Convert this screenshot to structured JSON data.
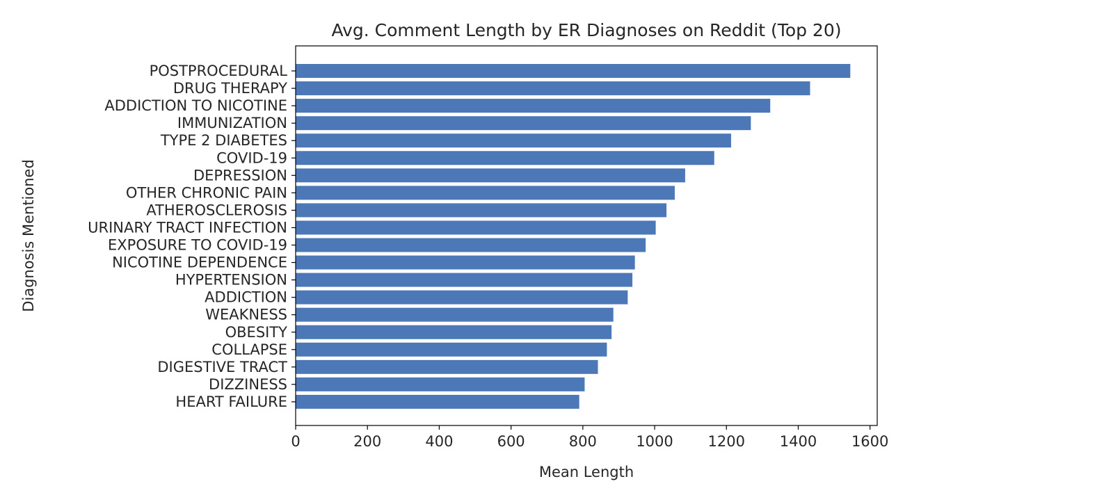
{
  "chart_data": {
    "type": "bar",
    "orientation": "horizontal",
    "title": "Avg. Comment Length by ER Diagnoses on Reddit (Top 20)",
    "xlabel": "Mean Length",
    "ylabel": "Diagnosis Mentioned",
    "xlim": [
      0,
      1620
    ],
    "xticks": [
      0,
      200,
      400,
      600,
      800,
      1000,
      1200,
      1400,
      1600
    ],
    "bar_color": "#4c78b8",
    "grid": false,
    "categories": [
      "POSTPROCEDURAL",
      "DRUG THERAPY",
      "ADDICTION TO NICOTINE",
      "IMMUNIZATION",
      "TYPE 2 DIABETES",
      "COVID-19",
      "DEPRESSION",
      "OTHER CHRONIC PAIN",
      "ATHEROSCLEROSIS",
      "URINARY TRACT INFECTION",
      "EXPOSURE TO COVID-19",
      "NICOTINE DEPENDENCE",
      "HYPERTENSION",
      "ADDICTION",
      "WEAKNESS",
      "OBESITY",
      "COLLAPSE",
      "DIGESTIVE TRACT",
      "DIZZINESS",
      "HEART FAILURE"
    ],
    "values": [
      1545,
      1433,
      1322,
      1268,
      1213,
      1166,
      1085,
      1056,
      1033,
      1003,
      975,
      945,
      938,
      925,
      885,
      880,
      867,
      842,
      805,
      790
    ]
  }
}
